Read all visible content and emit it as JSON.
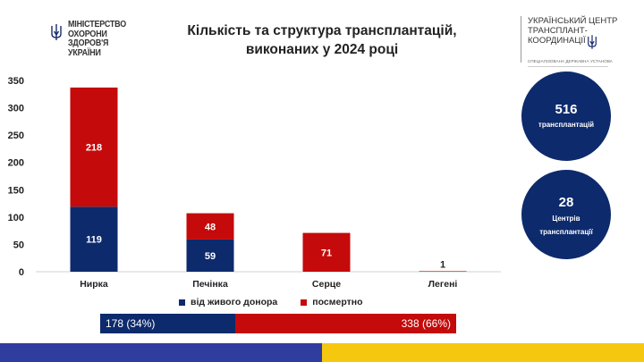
{
  "header": {
    "title_line1": "Кількість та структура трансплантацій,",
    "title_line2": "виконаних у 2024 році",
    "ministry_lines": [
      "МІНІСТЕРСТВО",
      "ОХОРОНИ",
      "ЗДОРОВ'Я",
      "УКРАЇНИ"
    ],
    "utc_lines": [
      "УКРАЇНСЬКИЙ ЦЕНТР",
      "ТРАНСПЛАНТ-",
      "КООРДИНАЦІЇ"
    ],
    "utc_subtitle": "СПЕЦІАЛІЗОВАНА ДЕРЖАВНА УСТАНОВА"
  },
  "stats": {
    "transplants_value": "516",
    "transplants_label": "трансплантацій",
    "centers_value": "28",
    "centers_label_line1": "Центрів",
    "centers_label_line2": "трансплантації"
  },
  "chart_data": {
    "type": "bar",
    "stacked": true,
    "categories": [
      "Нирка",
      "Печінка",
      "Серце",
      "Легені"
    ],
    "series": [
      {
        "name": "від живого донора",
        "values": [
          119,
          59,
          0,
          0
        ],
        "color": "#0d2a6c"
      },
      {
        "name": "посмертно",
        "values": [
          218,
          48,
          71,
          1
        ],
        "color": "#c40a0a"
      }
    ],
    "ylim": [
      0,
      350
    ],
    "yticks": [
      0,
      50,
      100,
      150,
      200,
      250,
      300,
      350
    ],
    "grid": false,
    "legend": "bottom"
  },
  "split_bar": {
    "live_label": "178 (34%)",
    "postmortem_label": "338 (66%)"
  },
  "colors": {
    "navy": "#0d2a6c",
    "red": "#c40a0a",
    "footer_blue": "#2f3d9f",
    "footer_yellow": "#f6c70f"
  }
}
